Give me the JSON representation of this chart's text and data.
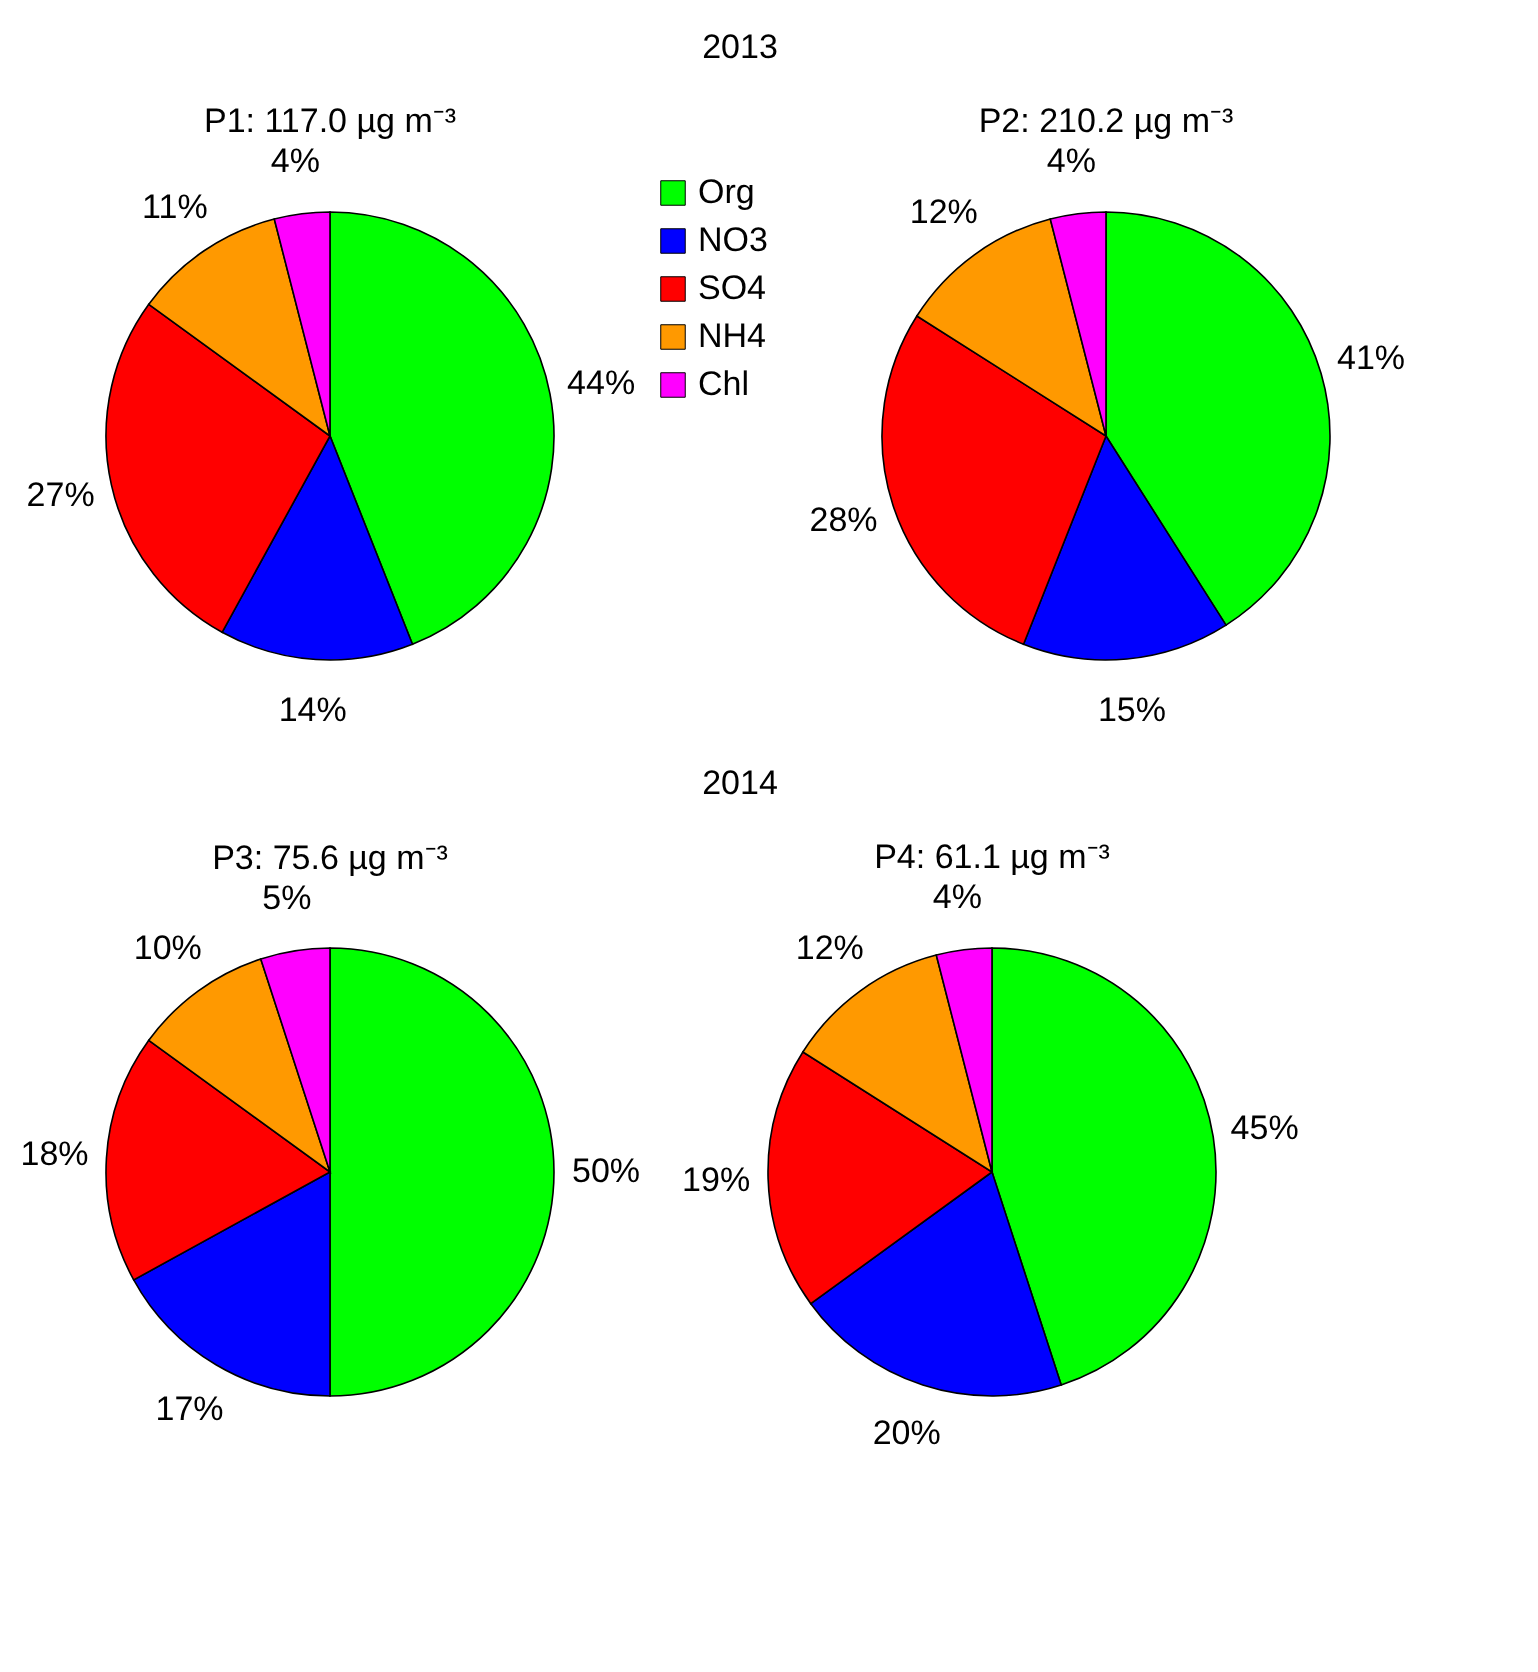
{
  "chart_data": [
    {
      "type": "pie",
      "title": "P1: 117.0 µg m⁻³",
      "annotations": [
        "2013"
      ],
      "categories": [
        "Org",
        "NO3",
        "SO4",
        "NH4",
        "Chl"
      ],
      "values": [
        44,
        14,
        27,
        11,
        4
      ],
      "colors": [
        "#00ff00",
        "#0000ff",
        "#ff0000",
        "#ff9900",
        "#ff00ff"
      ],
      "value_labels": [
        "44%",
        "14%",
        "27%",
        "11%",
        "4%"
      ],
      "legend": "right"
    },
    {
      "type": "pie",
      "title": "P2: 210.2 µg m⁻³",
      "categories": [
        null,
        null,
        null,
        null,
        null
      ],
      "values": [
        41,
        15,
        28,
        12,
        4
      ],
      "colors": [
        "#00ff00",
        "#0000ff",
        "#ff0000",
        "#ff9900",
        "#ff00ff"
      ],
      "value_labels": [
        "41%",
        "15%",
        "28%",
        "12%",
        "4%"
      ]
    },
    {
      "type": "pie",
      "title": "P3: 75.6 µg m⁻³",
      "annotations": [
        "2014"
      ],
      "categories": [
        null,
        null,
        null,
        null,
        null
      ],
      "values": [
        50,
        17,
        18,
        10,
        5
      ],
      "colors": [
        "#00ff00",
        "#0000ff",
        "#ff0000",
        "#ff9900",
        "#ff00ff"
      ],
      "value_labels": [
        "50%",
        "17%",
        "18%",
        "10%",
        "5%"
      ]
    },
    {
      "type": "pie",
      "title": "P4: 61.1 µg m⁻³",
      "categories": [
        null,
        null,
        null,
        null,
        null
      ],
      "values": [
        45,
        20,
        19,
        12,
        4
      ],
      "colors": [
        "#00ff00",
        "#0000ff",
        "#ff0000",
        "#ff9900",
        "#ff00ff"
      ],
      "value_labels": [
        "45%",
        "20%",
        "19%",
        "12%",
        "4%"
      ]
    }
  ]
}
